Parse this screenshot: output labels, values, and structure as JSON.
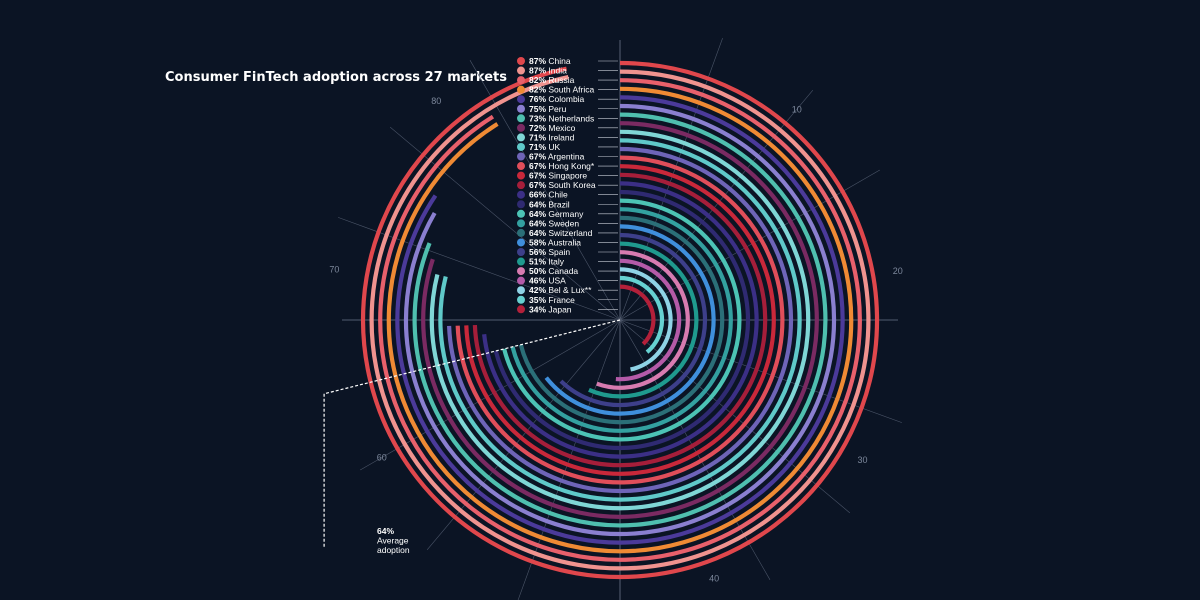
{
  "title": "Consumer FinTech adoption across 27 markets",
  "chart_data": {
    "type": "radial-bar",
    "title": "Consumer FinTech adoption across 27 markets",
    "unit": "%",
    "scale_ticks": [
      "10",
      "20",
      "30",
      "40",
      "60",
      "70",
      "80"
    ],
    "average": {
      "value": 64,
      "label_value": "64%",
      "label_lines": [
        "Average",
        "adoption"
      ]
    },
    "categories": [
      "China",
      "India",
      "Russia",
      "South Africa",
      "Colombia",
      "Peru",
      "Netherlands",
      "Mexico",
      "Ireland",
      "UK",
      "Argentina",
      "Hong Kong*",
      "Singapore",
      "South Korea",
      "Chile",
      "Brazil",
      "Germany",
      "Sweden",
      "Switzerland",
      "Australia",
      "Spain",
      "Italy",
      "Canada",
      "USA",
      "Bel & Lux**",
      "France",
      "Japan"
    ],
    "values": [
      87,
      87,
      82,
      82,
      76,
      75,
      73,
      72,
      71,
      71,
      67,
      67,
      67,
      67,
      66,
      64,
      64,
      64,
      64,
      58,
      56,
      51,
      50,
      46,
      42,
      35,
      34
    ],
    "labels": [
      "87%",
      "87%",
      "82%",
      "82%",
      "76%",
      "75%",
      "73%",
      "72%",
      "71%",
      "71%",
      "67%",
      "67%",
      "67%",
      "67%",
      "66%",
      "64%",
      "64%",
      "64%",
      "64%",
      "58%",
      "56%",
      "51%",
      "50%",
      "46%",
      "42%",
      "35%",
      "34%"
    ],
    "colors": [
      "#e0474c",
      "#f0938f",
      "#e8606b",
      "#ef8a34",
      "#4b3a9a",
      "#8a7fd0",
      "#4fbfaf",
      "#7a2a62",
      "#7fd6d6",
      "#5fc9c9",
      "#6e64b8",
      "#e04e5a",
      "#c9283a",
      "#a51e3a",
      "#3b2f86",
      "#2f2a72",
      "#4cc3b5",
      "#33a0a0",
      "#2b6f78",
      "#3f8fdc",
      "#3d3f8a",
      "#1f9a8e",
      "#d77bb0",
      "#b45aa8",
      "#8fd3e6",
      "#66d1d1",
      "#b3203a"
    ]
  }
}
